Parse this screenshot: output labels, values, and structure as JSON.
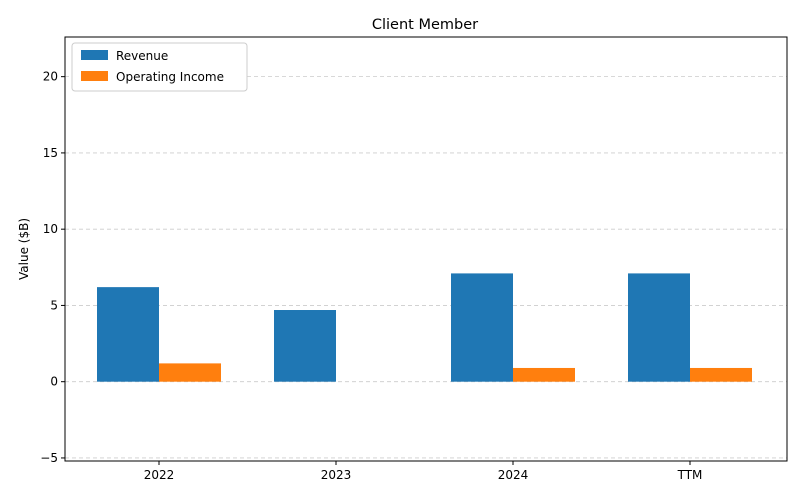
{
  "chart_data": {
    "type": "bar",
    "title": "Client Member",
    "xlabel": "",
    "ylabel": "Value ($B)",
    "categories": [
      "2022",
      "2023",
      "2024",
      "TTM"
    ],
    "series": [
      {
        "name": "Revenue",
        "values": [
          6.2,
          4.7,
          7.1,
          7.1
        ],
        "color": "#1f77b4"
      },
      {
        "name": "Operating Income",
        "values": [
          1.2,
          0.0,
          0.9,
          0.9
        ],
        "color": "#ff7f0e"
      }
    ],
    "ylim": [
      -5.2,
      22.6
    ],
    "yticks": [
      -5,
      0,
      5,
      10,
      15,
      20
    ],
    "grid": "y-dashed",
    "legend_position": "top-left"
  }
}
